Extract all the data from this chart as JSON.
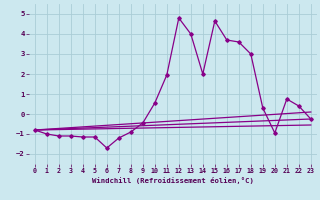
{
  "xlabel": "Windchill (Refroidissement éolien,°C)",
  "background_color": "#cce8ef",
  "grid_color": "#aacdd6",
  "line_color": "#880088",
  "xlim": [
    -0.5,
    23.5
  ],
  "ylim": [
    -2.5,
    5.5
  ],
  "yticks": [
    -2,
    -1,
    0,
    1,
    2,
    3,
    4,
    5
  ],
  "xticks": [
    0,
    1,
    2,
    3,
    4,
    5,
    6,
    7,
    8,
    9,
    10,
    11,
    12,
    13,
    14,
    15,
    16,
    17,
    18,
    19,
    20,
    21,
    22,
    23
  ],
  "series": [
    {
      "x": [
        0,
        1,
        2,
        3,
        4,
        5,
        6,
        7,
        8,
        9,
        10,
        11,
        12,
        13,
        14,
        15,
        16,
        17,
        18,
        19,
        20,
        21,
        22,
        23
      ],
      "y": [
        -0.8,
        -1.0,
        -1.1,
        -1.1,
        -1.15,
        -1.15,
        -1.7,
        -1.2,
        -0.9,
        -0.45,
        0.55,
        1.95,
        4.8,
        4.0,
        2.0,
        4.65,
        3.7,
        3.6,
        3.0,
        0.3,
        -0.95,
        0.75,
        0.4,
        -0.25
      ],
      "markers": true
    },
    {
      "x": [
        0,
        23
      ],
      "y": [
        -0.8,
        0.1
      ],
      "markers": false
    },
    {
      "x": [
        0,
        23
      ],
      "y": [
        -0.8,
        -0.25
      ],
      "markers": false
    },
    {
      "x": [
        0,
        23
      ],
      "y": [
        -0.8,
        -0.55
      ],
      "markers": false
    }
  ]
}
